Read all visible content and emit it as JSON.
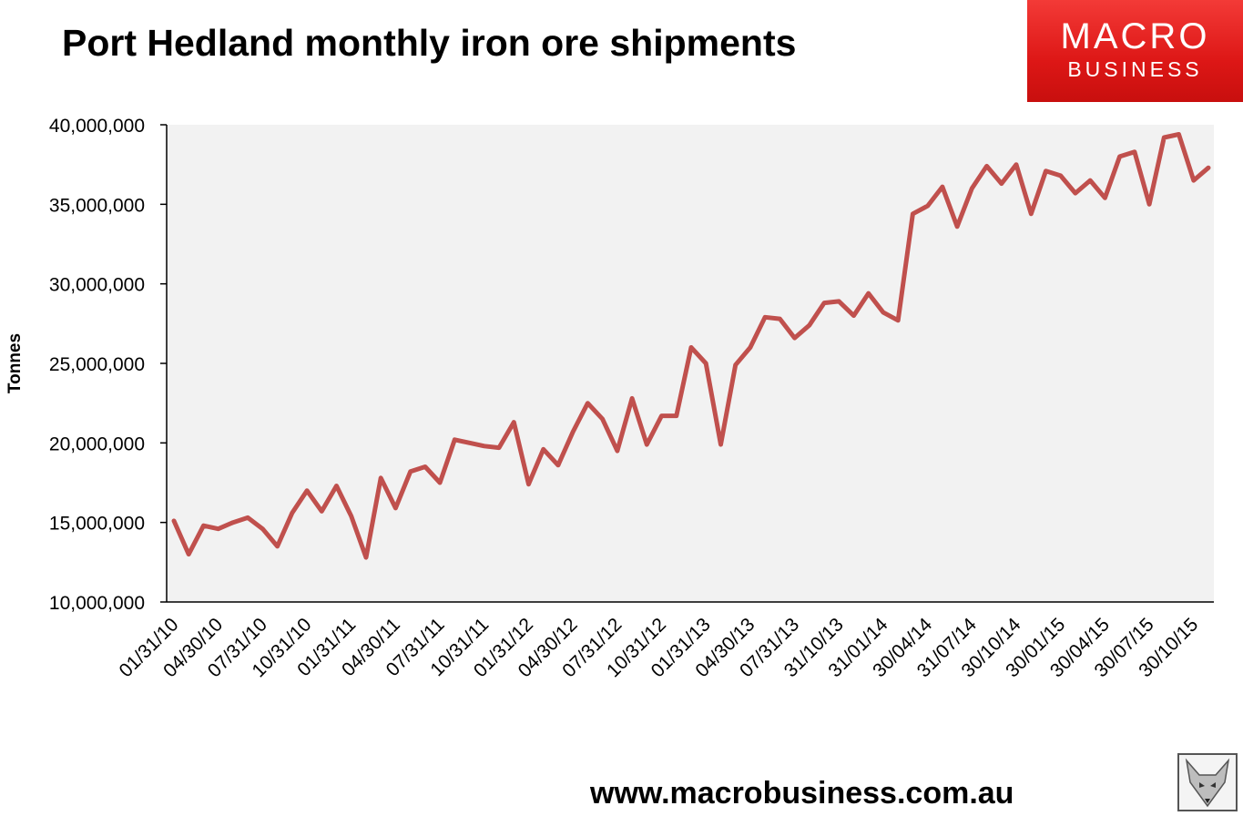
{
  "title": "Port Hedland monthly iron ore shipments",
  "logo": {
    "line1": "MACRO",
    "line2": "BUSINESS"
  },
  "footer": "www.macrobusiness.com.au",
  "colors": {
    "line": "#c0504d",
    "plot_bg": "#f2f2f2",
    "logo_red": "#dd1716"
  },
  "chart_data": {
    "type": "line",
    "title": "Port Hedland monthly iron ore shipments",
    "xlabel": "",
    "ylabel": "Tonnes",
    "ylim": [
      10000000,
      40000000
    ],
    "yticks": [
      10000000,
      15000000,
      20000000,
      25000000,
      30000000,
      35000000,
      40000000
    ],
    "ytick_labels": [
      "10,000,000",
      "15,000,000",
      "20,000,000",
      "25,000,000",
      "30,000,000",
      "35,000,000",
      "40,000,000"
    ],
    "xtick_labels": [
      "01/31/10",
      "04/30/10",
      "07/31/10",
      "10/31/10",
      "01/31/11",
      "04/30/11",
      "07/31/11",
      "10/31/11",
      "01/31/12",
      "04/30/12",
      "07/31/12",
      "10/31/12",
      "01/31/13",
      "04/30/13",
      "07/31/13",
      "31/10/13",
      "31/01/14",
      "30/04/14",
      "31/07/14",
      "30/10/14",
      "30/01/15",
      "30/04/15",
      "30/07/15",
      "30/10/15"
    ],
    "grid": false,
    "legend": "none",
    "series": [
      {
        "values": [
          15100000,
          13000000,
          14800000,
          14600000,
          15000000,
          15300000,
          14600000,
          13500000,
          15600000,
          17000000,
          15700000,
          17300000,
          15400000,
          12800000,
          17800000,
          15900000,
          18200000,
          18500000,
          17500000,
          20200000,
          20000000,
          19800000,
          19700000,
          21300000,
          17400000,
          19600000,
          18600000,
          20700000,
          22500000,
          21500000,
          19500000,
          22800000,
          19900000,
          21700000,
          21700000,
          26000000,
          25000000,
          19900000,
          24900000,
          26000000,
          27900000,
          27800000,
          26600000,
          27400000,
          28800000,
          28900000,
          28000000,
          29400000,
          28200000,
          27700000,
          34400000,
          34900000,
          36100000,
          33600000,
          36000000,
          37400000,
          36300000,
          37500000,
          34400000,
          37100000,
          36800000,
          35700000,
          36500000,
          35400000,
          38000000,
          38300000,
          35000000,
          39200000,
          39400000,
          36500000,
          37300000
        ]
      }
    ]
  }
}
